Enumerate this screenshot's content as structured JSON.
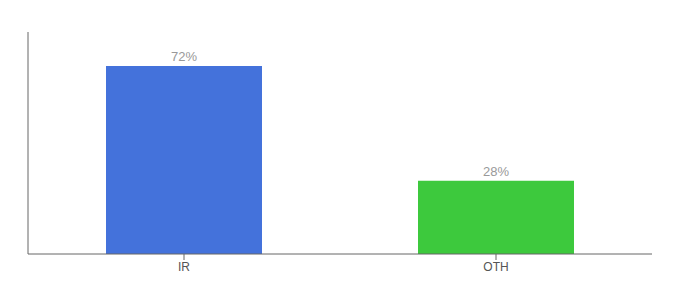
{
  "chart_data": {
    "type": "bar",
    "categories": [
      "IR",
      "OTH"
    ],
    "values": [
      72,
      28
    ],
    "value_labels": [
      "72%",
      "28%"
    ],
    "colors": [
      "#4472db",
      "#3dc93d"
    ],
    "ylim": [
      0,
      85
    ],
    "data_labels": true,
    "tick_labels": "x",
    "grid": false
  }
}
